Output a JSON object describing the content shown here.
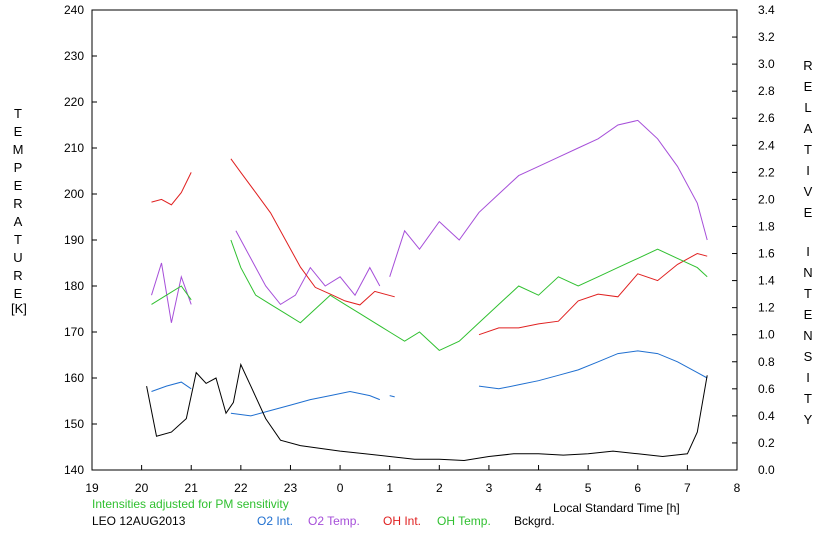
{
  "chart_data": {
    "type": "line",
    "title": "",
    "xlabel": "Local Standard Time [h]",
    "ylabel_left": "TEMPERATURE",
    "ylabel_left_unit": "[K]",
    "ylabel_right": "RELATIVE INTENSITY",
    "note": "Intensities adjusted for PM sensitivity",
    "station_date": "LEO 12AUG2013",
    "x_ticks": [
      "19",
      "20",
      "21",
      "22",
      "23",
      "0",
      "1",
      "2",
      "3",
      "4",
      "5",
      "6",
      "7",
      "8"
    ],
    "x_range_hours": [
      19,
      32
    ],
    "left_ylim": [
      140,
      240
    ],
    "left_ticks": [
      140,
      150,
      160,
      170,
      180,
      190,
      200,
      210,
      220,
      230,
      240
    ],
    "right_ylim": [
      0.0,
      3.4
    ],
    "right_ticks": [
      "0.0",
      "0.2",
      "0.4",
      "0.6",
      "0.8",
      "1.0",
      "1.2",
      "1.4",
      "1.6",
      "1.8",
      "2.0",
      "2.2",
      "2.4",
      "2.6",
      "2.8",
      "3.0",
      "3.2",
      "3.4"
    ],
    "grid": false,
    "legend_position": "bottom",
    "series": [
      {
        "name": "O2 Int.",
        "color": "#1f6fd0",
        "axis": "right",
        "segments": [
          {
            "x": [
              20.2,
              20.5,
              20.8,
              21.0
            ],
            "y": [
              0.58,
              0.62,
              0.65,
              0.6
            ]
          },
          {
            "x": [
              21.8,
              22.2,
              22.6,
              23.0,
              23.4,
              23.8,
              24.2,
              24.6,
              24.8
            ],
            "y": [
              0.42,
              0.4,
              0.44,
              0.48,
              0.52,
              0.55,
              0.58,
              0.55,
              0.52
            ]
          },
          {
            "x": [
              25.0,
              25.1
            ],
            "y": [
              0.55,
              0.54
            ]
          },
          {
            "x": [
              26.8,
              27.2,
              27.6,
              28.0,
              28.4,
              28.8,
              29.2,
              29.6,
              30.0,
              30.4,
              30.8,
              31.2,
              31.4
            ],
            "y": [
              0.62,
              0.6,
              0.63,
              0.66,
              0.7,
              0.74,
              0.8,
              0.86,
              0.88,
              0.86,
              0.8,
              0.72,
              0.68
            ]
          }
        ]
      },
      {
        "name": "O2 Temp.",
        "color": "#a64fd9",
        "axis": "left",
        "segments": [
          {
            "x": [
              20.2,
              20.4,
              20.6,
              20.8,
              21.0
            ],
            "y": [
              178,
              185,
              172,
              182,
              176
            ]
          },
          {
            "x": [
              21.9,
              22.2,
              22.5,
              22.8,
              23.1,
              23.4,
              23.7,
              24.0,
              24.3,
              24.6,
              24.8
            ],
            "y": [
              192,
              186,
              180,
              176,
              178,
              184,
              180,
              182,
              178,
              184,
              180
            ]
          },
          {
            "x": [
              25.0,
              25.3,
              25.6,
              26.0,
              26.4,
              26.8,
              27.2,
              27.6,
              28.0,
              28.4,
              28.8,
              29.2,
              29.6,
              30.0,
              30.4,
              30.8,
              31.2,
              31.4
            ],
            "y": [
              182,
              192,
              188,
              194,
              190,
              196,
              200,
              204,
              206,
              208,
              210,
              212,
              215,
              216,
              212,
              206,
              198,
              190
            ]
          }
        ]
      },
      {
        "name": "OH Int.",
        "color": "#e02020",
        "axis": "right",
        "segments": [
          {
            "x": [
              20.2,
              20.4,
              20.6,
              20.8,
              21.0
            ],
            "y": [
              1.98,
              2.0,
              1.96,
              2.05,
              2.2
            ]
          },
          {
            "x": [
              21.8,
              22.0,
              22.3,
              22.6,
              22.9,
              23.2,
              23.5,
              23.8,
              24.1,
              24.4,
              24.7,
              25.1
            ],
            "y": [
              2.3,
              2.2,
              2.05,
              1.9,
              1.7,
              1.5,
              1.35,
              1.3,
              1.25,
              1.22,
              1.32,
              1.28
            ]
          },
          {
            "x": [
              26.8,
              27.2,
              27.6,
              28.0,
              28.4,
              28.8,
              29.2,
              29.6,
              30.0,
              30.4,
              30.8,
              31.2,
              31.4
            ],
            "y": [
              1.0,
              1.05,
              1.05,
              1.08,
              1.1,
              1.25,
              1.3,
              1.28,
              1.45,
              1.4,
              1.52,
              1.6,
              1.58
            ]
          }
        ]
      },
      {
        "name": "OH Temp.",
        "color": "#30c030",
        "axis": "left",
        "segments": [
          {
            "x": [
              20.2,
              20.5,
              20.8,
              21.0
            ],
            "y": [
              176,
              178,
              180,
              177
            ]
          },
          {
            "x": [
              21.8,
              22.0,
              22.3,
              22.6,
              22.9,
              23.2,
              23.5,
              23.8,
              24.1,
              24.4,
              24.7,
              25.0,
              25.3,
              25.6,
              26.0,
              26.4,
              26.8,
              27.2,
              27.6,
              28.0,
              28.4,
              28.8,
              29.2,
              29.6,
              30.0,
              30.4,
              30.8,
              31.2,
              31.4
            ],
            "y": [
              190,
              184,
              178,
              176,
              174,
              172,
              175,
              178,
              176,
              174,
              172,
              170,
              168,
              170,
              166,
              168,
              172,
              176,
              180,
              178,
              182,
              180,
              182,
              184,
              186,
              188,
              186,
              184,
              182
            ]
          }
        ]
      },
      {
        "name": "Bckgrd.",
        "color": "#000000",
        "axis": "right",
        "segments": [
          {
            "x": [
              20.1,
              20.3,
              20.6,
              20.9,
              21.1,
              21.3,
              21.5,
              21.7,
              21.85,
              22.0,
              22.2,
              22.5,
              22.8,
              23.2,
              23.6,
              24.0,
              24.5,
              25.0,
              25.5,
              26.0,
              26.5,
              27.0,
              27.5,
              28.0,
              28.5,
              29.0,
              29.5,
              30.0,
              30.5,
              31.0,
              31.2,
              31.4
            ],
            "y": [
              0.62,
              0.25,
              0.28,
              0.38,
              0.72,
              0.64,
              0.68,
              0.42,
              0.5,
              0.78,
              0.62,
              0.38,
              0.22,
              0.18,
              0.16,
              0.14,
              0.12,
              0.1,
              0.08,
              0.08,
              0.07,
              0.1,
              0.12,
              0.12,
              0.11,
              0.12,
              0.14,
              0.12,
              0.1,
              0.12,
              0.28,
              0.7
            ]
          }
        ]
      }
    ]
  }
}
